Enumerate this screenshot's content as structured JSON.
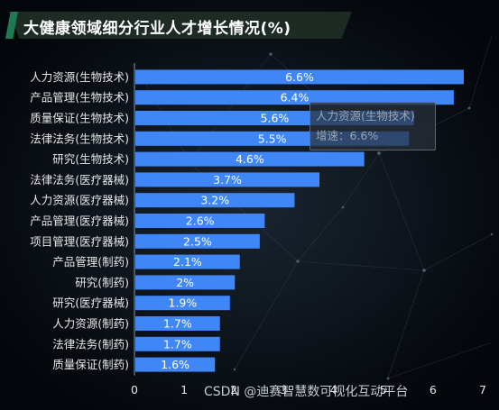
{
  "title": "大健康领域细分行业人才增长情况(%)",
  "watermark": "CSDN @迪赛智慧数可视化互动平台",
  "tooltip": {
    "name": "人力资源(生物技术)",
    "value_line": "增速：6.6%"
  },
  "colors": {
    "bar": "#3f86f7",
    "label": "#ffffff",
    "axis_text": "#e6e6e6"
  },
  "chart_data": {
    "type": "bar",
    "orientation": "horizontal",
    "title": "大健康领域细分行业人才增长情况(%)",
    "categories": [
      "人力资源(生物技术)",
      "产品管理(生物技术)",
      "质量保证(生物技术)",
      "法律法务(生物技术)",
      "研究(生物技术)",
      "法律法务(医疗器械)",
      "人力资源(医疗器械)",
      "产品管理(医疗器械)",
      "项目管理(医疗器械)",
      "产品管理(制药)",
      "研究(制药)",
      "研究(医疗器械)",
      "人力资源(制药)",
      "法律法务(制药)",
      "质量保证(制药)"
    ],
    "values": [
      6.6,
      6.4,
      5.6,
      5.5,
      4.6,
      3.7,
      3.2,
      2.6,
      2.5,
      2.1,
      2,
      1.9,
      1.7,
      1.7,
      1.6
    ],
    "value_labels": [
      "6.6%",
      "6.4%",
      "5.6%",
      "5.5%",
      "4.6%",
      "3.7%",
      "3.2%",
      "2.6%",
      "2.5%",
      "2.1%",
      "2%",
      "1.9%",
      "1.7%",
      "1.7%",
      "1.6%"
    ],
    "xlim": [
      0,
      7
    ],
    "xticks": [
      "0",
      "1",
      "2",
      "3",
      "4",
      "5",
      "6",
      "7"
    ],
    "grid": false,
    "legend": "none"
  }
}
